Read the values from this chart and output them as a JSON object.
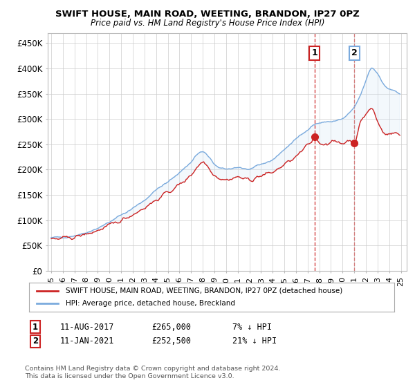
{
  "title": "SWIFT HOUSE, MAIN ROAD, WEETING, BRANDON, IP27 0PZ",
  "subtitle": "Price paid vs. HM Land Registry's House Price Index (HPI)",
  "yticks": [
    0,
    50000,
    100000,
    150000,
    200000,
    250000,
    300000,
    350000,
    400000,
    450000
  ],
  "ytick_labels": [
    "£0",
    "£50K",
    "£100K",
    "£150K",
    "£200K",
    "£250K",
    "£300K",
    "£350K",
    "£400K",
    "£450K"
  ],
  "ylim": [
    0,
    470000
  ],
  "hpi_color": "#7aaadd",
  "price_color": "#cc2222",
  "legend_label1": "SWIFT HOUSE, MAIN ROAD, WEETING, BRANDON, IP27 0PZ (detached house)",
  "legend_label2": "HPI: Average price, detached house, Breckland",
  "footer": "Contains HM Land Registry data © Crown copyright and database right 2024.\nThis data is licensed under the Open Government Licence v3.0.",
  "background_color": "#ffffff",
  "grid_color": "#cccccc",
  "shade_color": "#d0e4f7"
}
